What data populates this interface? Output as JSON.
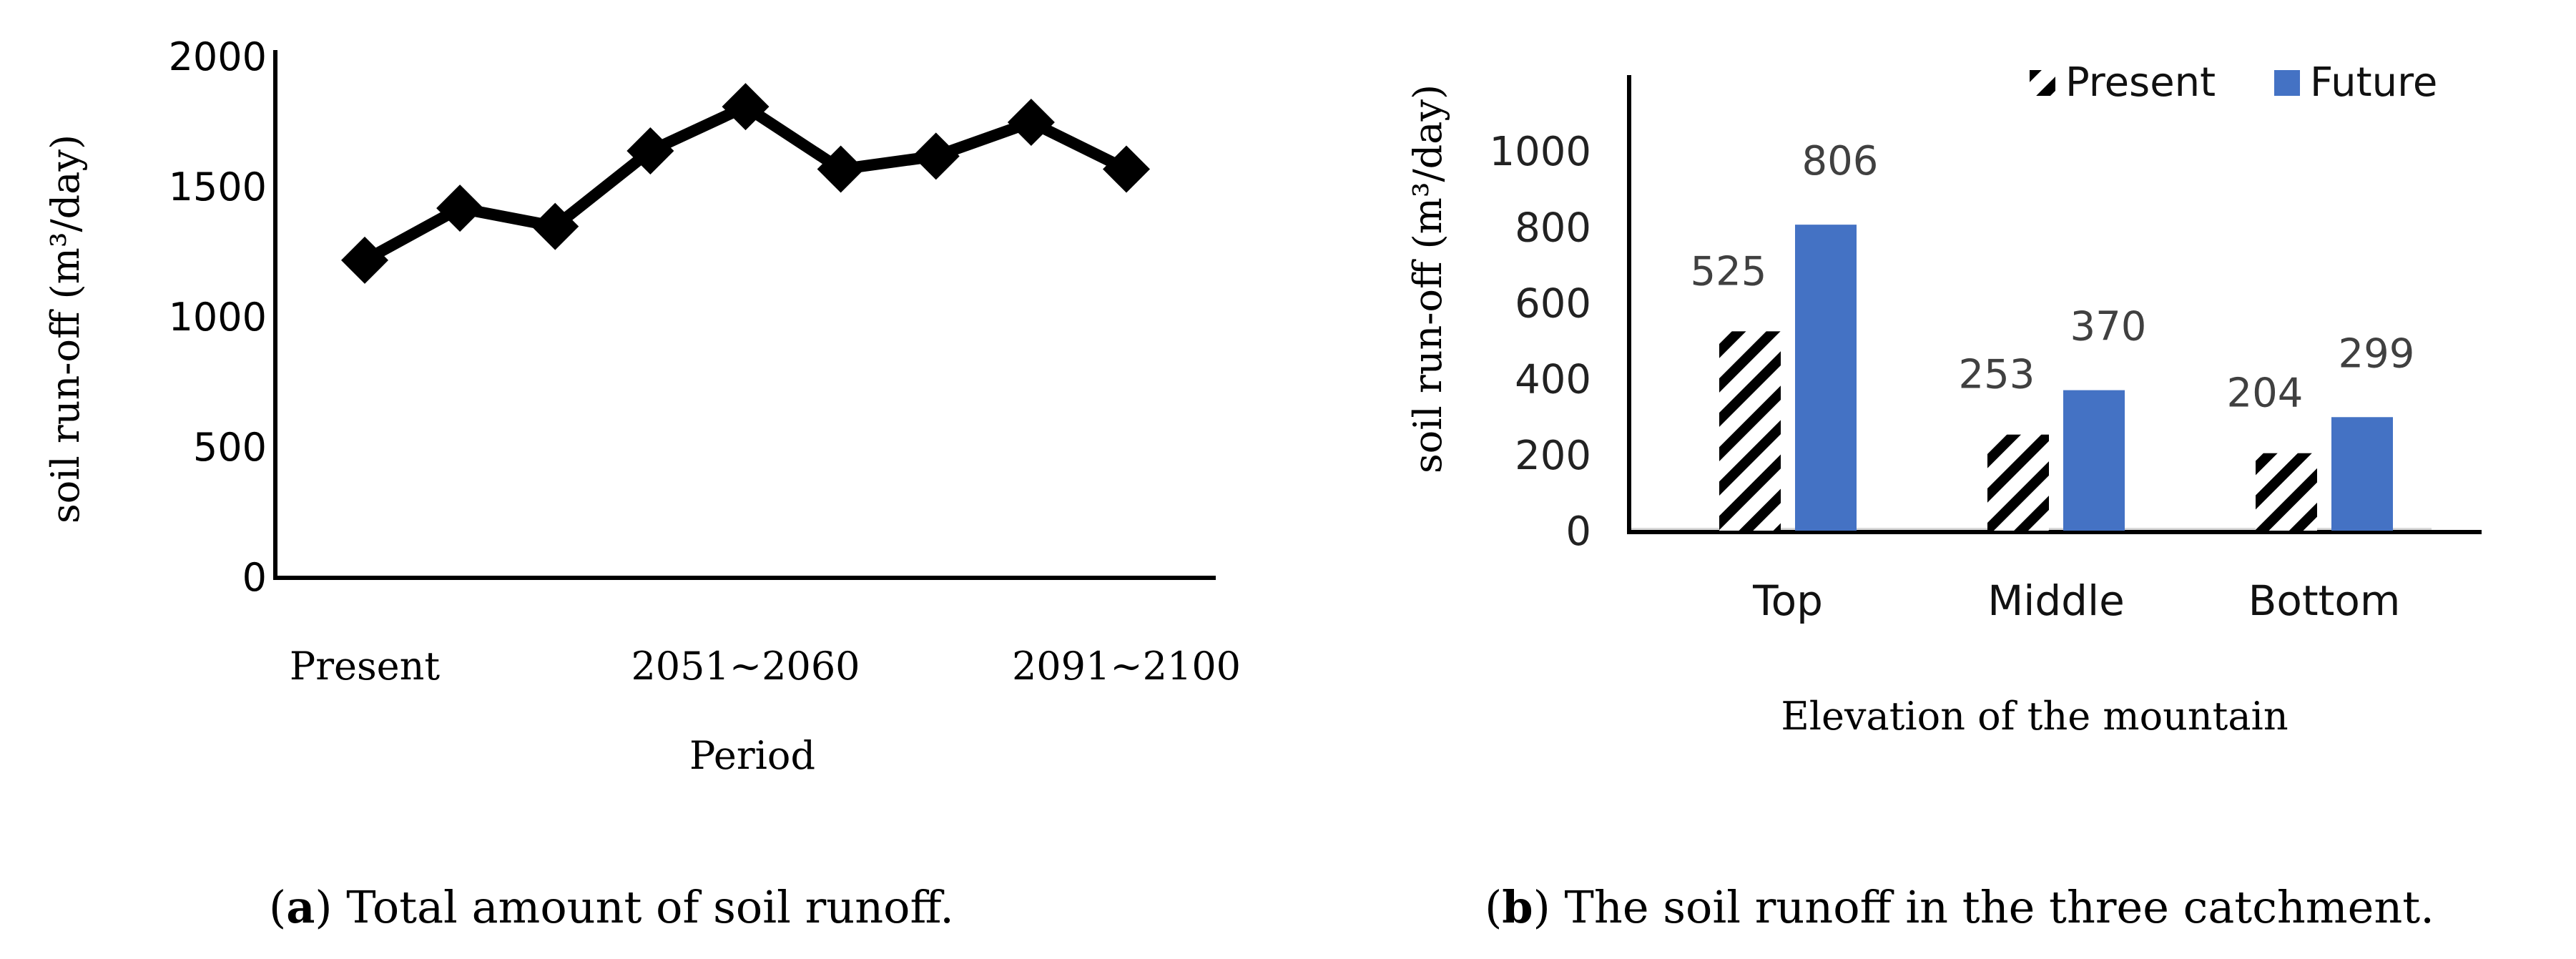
{
  "chart_data": [
    {
      "type": "line",
      "panel": "a",
      "title": "Total amount of soil runoff.",
      "caption_letter": "a",
      "xlabel": "Period",
      "ylabel": "soil run-off (m³/day)",
      "x_tick_labels": [
        "Present",
        "2051~2060",
        "2091~2100"
      ],
      "x_tick_label_indices": [
        0,
        4,
        8
      ],
      "ylim": [
        0,
        2000
      ],
      "y_ticks": [
        0,
        500,
        1000,
        1500,
        2000
      ],
      "series": [
        {
          "name": "soil run-off",
          "color": "#000000",
          "marker": "diamond",
          "values": [
            1220,
            1420,
            1350,
            1640,
            1810,
            1570,
            1620,
            1750,
            1570
          ]
        }
      ]
    },
    {
      "type": "bar",
      "panel": "b",
      "title": "The soil runoff in the three catchment.",
      "caption_letter": "b",
      "xlabel": "Elevation of the mountain",
      "ylabel": "soil run-off (m³/day)",
      "categories": [
        "Top",
        "Middle",
        "Bottom"
      ],
      "ylim": [
        0,
        1200
      ],
      "y_ticks": [
        0,
        200,
        400,
        600,
        800,
        1000
      ],
      "legend_position": "top",
      "series": [
        {
          "name": "Present",
          "pattern": "hatch",
          "color": "#000000",
          "values": [
            525,
            253,
            204
          ]
        },
        {
          "name": "Future",
          "pattern": "solid",
          "color": "#4472C4",
          "values": [
            806,
            370,
            299
          ]
        }
      ]
    }
  ]
}
